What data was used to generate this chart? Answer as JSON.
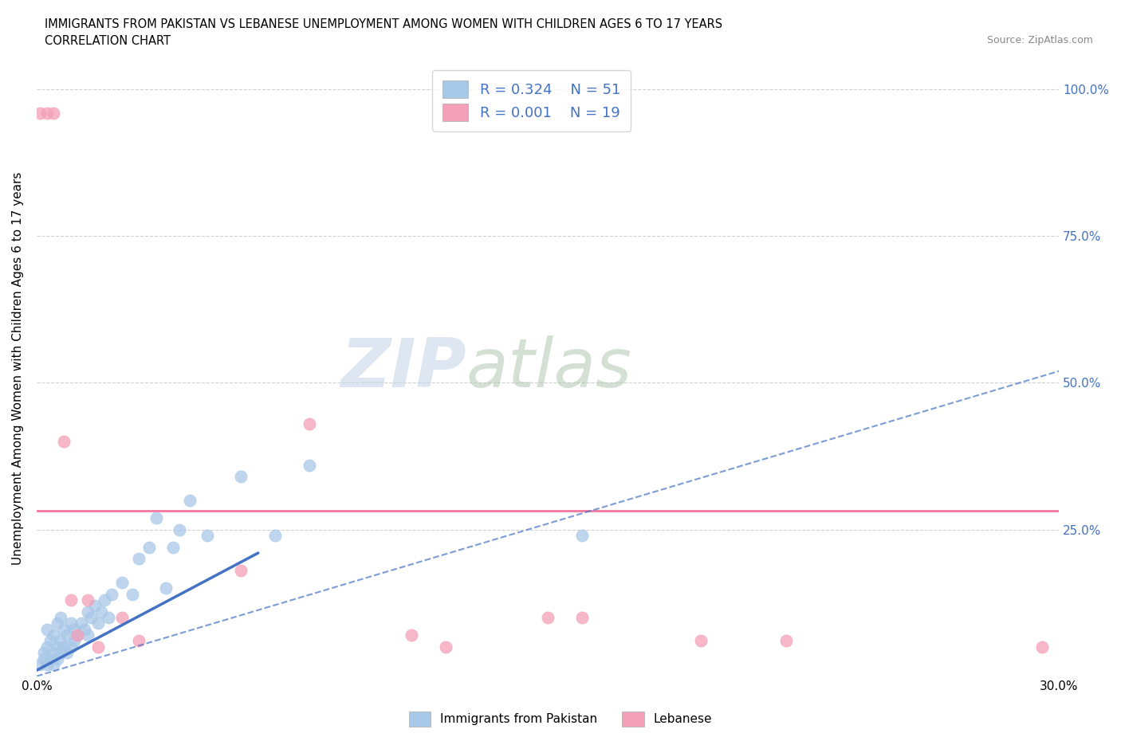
{
  "title": "IMMIGRANTS FROM PAKISTAN VS LEBANESE UNEMPLOYMENT AMONG WOMEN WITH CHILDREN AGES 6 TO 17 YEARS",
  "subtitle": "CORRELATION CHART",
  "source": "Source: ZipAtlas.com",
  "ylabel": "Unemployment Among Women with Children Ages 6 to 17 years",
  "xlim": [
    0.0,
    0.3
  ],
  "ylim": [
    0.0,
    1.05
  ],
  "x_ticks": [
    0.0,
    0.05,
    0.1,
    0.15,
    0.2,
    0.25,
    0.3
  ],
  "x_tick_labels": [
    "0.0%",
    "",
    "",
    "",
    "",
    "",
    "30.0%"
  ],
  "y_ticks": [
    0.0,
    0.25,
    0.5,
    0.75,
    1.0
  ],
  "y_tick_labels": [
    "",
    "25.0%",
    "50.0%",
    "75.0%",
    "100.0%"
  ],
  "pakistan_r": "0.324",
  "pakistan_n": "51",
  "lebanese_r": "0.001",
  "lebanese_n": "19",
  "pakistan_color": "#a8c8e8",
  "lebanese_color": "#f4a0b8",
  "pakistan_line_color": "#4472c4",
  "lebanese_line_color": "#f06090",
  "lebanese_hline_color": "#f06090",
  "lebanese_hline_y": 0.282,
  "grid_color": "#d0d0d0",
  "watermark_zip": "ZIP",
  "watermark_atlas": "atlas",
  "pakistan_x": [
    0.001,
    0.002,
    0.002,
    0.003,
    0.003,
    0.003,
    0.004,
    0.004,
    0.005,
    0.005,
    0.005,
    0.006,
    0.006,
    0.006,
    0.007,
    0.007,
    0.007,
    0.008,
    0.008,
    0.009,
    0.009,
    0.01,
    0.01,
    0.011,
    0.011,
    0.012,
    0.013,
    0.014,
    0.015,
    0.015,
    0.016,
    0.017,
    0.018,
    0.019,
    0.02,
    0.021,
    0.022,
    0.025,
    0.028,
    0.03,
    0.033,
    0.035,
    0.038,
    0.04,
    0.042,
    0.045,
    0.05,
    0.06,
    0.07,
    0.08,
    0.16
  ],
  "pakistan_y": [
    0.02,
    0.03,
    0.04,
    0.02,
    0.05,
    0.08,
    0.03,
    0.06,
    0.02,
    0.04,
    0.07,
    0.03,
    0.05,
    0.09,
    0.04,
    0.06,
    0.1,
    0.05,
    0.08,
    0.04,
    0.07,
    0.05,
    0.09,
    0.06,
    0.08,
    0.07,
    0.09,
    0.08,
    0.07,
    0.11,
    0.1,
    0.12,
    0.09,
    0.11,
    0.13,
    0.1,
    0.14,
    0.16,
    0.14,
    0.2,
    0.22,
    0.27,
    0.15,
    0.22,
    0.25,
    0.3,
    0.24,
    0.34,
    0.24,
    0.36,
    0.24
  ],
  "lebanese_x": [
    0.001,
    0.003,
    0.005,
    0.008,
    0.01,
    0.012,
    0.015,
    0.018,
    0.025,
    0.03,
    0.06,
    0.08,
    0.11,
    0.12,
    0.15,
    0.16,
    0.195,
    0.22,
    0.295
  ],
  "lebanese_y": [
    0.96,
    0.96,
    0.96,
    0.4,
    0.13,
    0.07,
    0.13,
    0.05,
    0.1,
    0.06,
    0.18,
    0.43,
    0.07,
    0.05,
    0.1,
    0.1,
    0.06,
    0.06,
    0.05
  ],
  "pk_line_x0": 0.0,
  "pk_line_x1": 0.065,
  "pk_line_y0": 0.01,
  "pk_line_y1": 0.21,
  "lb_line_x0": 0.0,
  "lb_line_x1": 0.3,
  "lb_line_y0": 0.0,
  "lb_line_y1": 0.52
}
